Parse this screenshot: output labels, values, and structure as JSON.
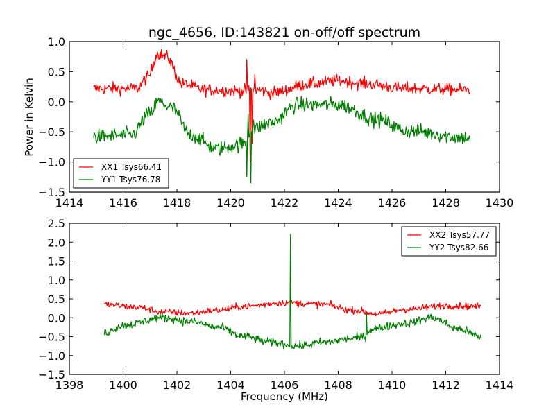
{
  "chart_data": [
    {
      "type": "line",
      "title": "ngc_4656, ID:143821 on-off/off spectrum",
      "xlabel": "",
      "ylabel": "Power in Kelvin",
      "xlim": [
        1414,
        1430
      ],
      "ylim": [
        -1.5,
        1.0
      ],
      "xticks": [
        "1414",
        "1416",
        "1418",
        "1420",
        "1422",
        "1424",
        "1426",
        "1428",
        "1430"
      ],
      "yticks": [
        "1.0",
        "0.5",
        "0.0",
        "−0.5",
        "−1.0",
        "−1.5"
      ],
      "legend_position": "lower-left",
      "grid": false,
      "x_range": [
        1414.9,
        1428.9
      ],
      "series": [
        {
          "name": "XX1 Tsys66.41",
          "color": "#ff0000",
          "noise": 0.09,
          "baseline": [
            [
              1414.9,
              0.22
            ],
            [
              1416.5,
              0.22
            ],
            [
              1416.9,
              0.4
            ],
            [
              1417.3,
              0.8
            ],
            [
              1417.6,
              0.75
            ],
            [
              1418.2,
              0.3
            ],
            [
              1419,
              0.2
            ],
            [
              1420.5,
              0.18
            ],
            [
              1421,
              0.2
            ],
            [
              1421.5,
              0.15
            ],
            [
              1423,
              0.3
            ],
            [
              1424,
              0.35
            ],
            [
              1425,
              0.3
            ],
            [
              1426.5,
              0.22
            ],
            [
              1428.9,
              0.2
            ]
          ],
          "spikes": [
            [
              1420.6,
              0.7
            ],
            [
              1420.72,
              -1.0
            ],
            [
              1420.8,
              -0.7
            ],
            [
              1420.9,
              0.45
            ]
          ]
        },
        {
          "name": "YY1 Tsys76.78",
          "color": "#008000",
          "noise": 0.11,
          "baseline": [
            [
              1414.9,
              -0.58
            ],
            [
              1416.3,
              -0.55
            ],
            [
              1417,
              -0.2
            ],
            [
              1417.3,
              0.0
            ],
            [
              1417.8,
              -0.1
            ],
            [
              1418.5,
              -0.55
            ],
            [
              1419.5,
              -0.78
            ],
            [
              1420.5,
              -0.7
            ],
            [
              1420.8,
              -0.45
            ],
            [
              1421.5,
              -0.35
            ],
            [
              1422.5,
              -0.05
            ],
            [
              1424,
              -0.05
            ],
            [
              1425.5,
              -0.3
            ],
            [
              1426.5,
              -0.48
            ],
            [
              1428.9,
              -0.6
            ]
          ],
          "spikes": [
            [
              1420.6,
              -1.25
            ],
            [
              1420.65,
              -0.2
            ],
            [
              1420.75,
              -1.35
            ],
            [
              1420.85,
              -0.3
            ]
          ]
        }
      ]
    },
    {
      "type": "line",
      "title": "",
      "xlabel": "Frequency (MHz)",
      "ylabel": "",
      "xlim": [
        1398,
        1414
      ],
      "ylim": [
        -1.5,
        2.5
      ],
      "xticks": [
        "1398",
        "1400",
        "1402",
        "1404",
        "1406",
        "1408",
        "1410",
        "1412",
        "1414"
      ],
      "yticks": [
        "2.5",
        "2.0",
        "1.5",
        "1.0",
        "0.5",
        "0.0",
        "−0.5",
        "−1.0",
        "−1.5"
      ],
      "legend_position": "upper-right",
      "grid": false,
      "x_range": [
        1399.3,
        1413.3
      ],
      "series": [
        {
          "name": "XX2 Tsys57.77",
          "color": "#ff0000",
          "noise": 0.08,
          "baseline": [
            [
              1399.3,
              0.35
            ],
            [
              1400.5,
              0.28
            ],
            [
              1401.5,
              0.15
            ],
            [
              1402.5,
              0.12
            ],
            [
              1403.5,
              0.2
            ],
            [
              1404.5,
              0.3
            ],
            [
              1406,
              0.4
            ],
            [
              1407.5,
              0.35
            ],
            [
              1408.5,
              0.2
            ],
            [
              1409.5,
              0.1
            ],
            [
              1410.5,
              0.22
            ],
            [
              1412,
              0.32
            ],
            [
              1413.3,
              0.3
            ]
          ],
          "spikes": []
        },
        {
          "name": "YY2 Tsys82.66",
          "color": "#008000",
          "noise": 0.1,
          "baseline": [
            [
              1399.3,
              -0.4
            ],
            [
              1400,
              -0.2
            ],
            [
              1401.5,
              0.0
            ],
            [
              1402.5,
              -0.1
            ],
            [
              1403.5,
              -0.25
            ],
            [
              1404.5,
              -0.5
            ],
            [
              1405.5,
              -0.65
            ],
            [
              1406.5,
              -0.75
            ],
            [
              1407.5,
              -0.65
            ],
            [
              1408.5,
              -0.55
            ],
            [
              1409,
              -0.5
            ],
            [
              1409.2,
              -0.3
            ],
            [
              1410.5,
              -0.15
            ],
            [
              1411.5,
              0.0
            ],
            [
              1412.5,
              -0.3
            ],
            [
              1413.3,
              -0.5
            ]
          ],
          "spikes": [
            [
              1406.22,
              2.2
            ],
            [
              1406.3,
              -0.8
            ],
            [
              1409.05,
              0.15
            ]
          ]
        }
      ]
    }
  ]
}
